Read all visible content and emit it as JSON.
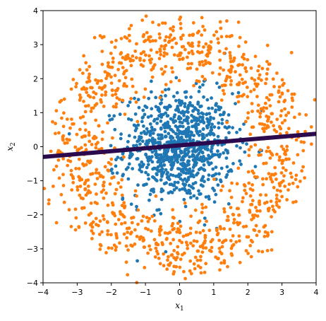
{
  "chart_data": {
    "type": "scatter",
    "title": "",
    "xlabel": "x",
    "xlabel_sub": "1",
    "ylabel": "x",
    "ylabel_sub": "2",
    "xlim": [
      -4,
      4
    ],
    "ylim": [
      -4,
      4
    ],
    "xticks": [
      -4,
      -3,
      -2,
      -1,
      0,
      1,
      2,
      3,
      4
    ],
    "yticks": [
      -4,
      -3,
      -2,
      -1,
      0,
      1,
      2,
      3,
      4
    ],
    "grid": false,
    "legend": "none",
    "series": [
      {
        "color": "#1f77b4",
        "distribution": "gaussian blob",
        "center": [
          0,
          0
        ],
        "approx_std": 0.8,
        "approx_count": 900
      },
      {
        "color": "#ff7f0e",
        "distribution": "ring",
        "center": [
          0,
          0
        ],
        "approx_radius": 3.0,
        "approx_radius_std": 0.5,
        "approx_count": 1100
      }
    ],
    "decision_line": {
      "color": "#2b0a4e",
      "from": [
        -4,
        -0.3
      ],
      "to": [
        4,
        0.38
      ]
    }
  }
}
